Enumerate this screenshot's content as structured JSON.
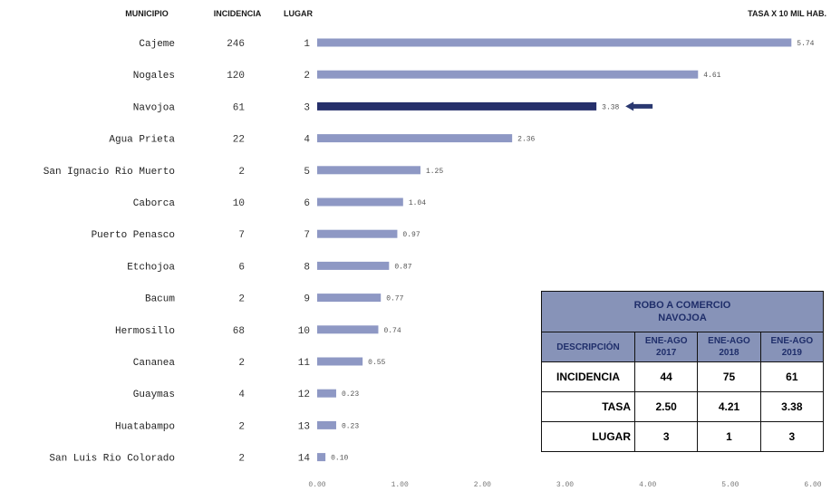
{
  "headers": {
    "municipio": "MUNICIPIO",
    "incidencia": "INCIDENCIA",
    "lugar": "LUGAR",
    "tasa": "TASA X 10 MIL HAB."
  },
  "colors": {
    "bar": "#8e98c4",
    "highlight_bar": "#26306b",
    "arrow": "#2a3870"
  },
  "chart_data": {
    "type": "bar",
    "orientation": "horizontal",
    "categories": [
      "Cajeme",
      "Nogales",
      "Navojoa",
      "Agua Prieta",
      "San Ignacio Rio Muerto",
      "Caborca",
      "Puerto Penasco",
      "Etchojoa",
      "Bacum",
      "Hermosillo",
      "Cananea",
      "Guaymas",
      "Huatabampo",
      "San Luis Rio Colorado"
    ],
    "incidencia": [
      "246",
      "120",
      "61",
      "22",
      "2",
      "10",
      "7",
      "6",
      "2",
      "68",
      "2",
      "4",
      "2",
      "2"
    ],
    "lugar": [
      "1",
      "2",
      "3",
      "4",
      "5",
      "6",
      "7",
      "8",
      "9",
      "10",
      "11",
      "12",
      "13",
      "14"
    ],
    "values": [
      5.74,
      4.61,
      3.38,
      2.36,
      1.25,
      1.04,
      0.97,
      0.87,
      0.77,
      0.74,
      0.55,
      0.23,
      0.23,
      0.1
    ],
    "value_labels": [
      "5.74",
      "4.61",
      "3.38",
      "2.36",
      "1.25",
      "1.04",
      "0.97",
      "0.87",
      "0.77",
      "0.74",
      "0.55",
      "0.23",
      "0.23",
      "0.10"
    ],
    "highlight": "Navojoa",
    "xlim": [
      0,
      6
    ],
    "x_ticks": [
      "0.00",
      "1.00",
      "2.00",
      "3.00",
      "4.00",
      "5.00",
      "6.00"
    ],
    "xlabel": "",
    "ylabel": "",
    "grid": false,
    "legend": "none"
  },
  "table": {
    "title_line1": "ROBO A COMERCIO",
    "title_line2": "NAVOJOA",
    "col_desc": "DESCRIPCIÓN",
    "cols": [
      {
        "top": "ENE-AGO",
        "year": "2017"
      },
      {
        "top": "ENE-AGO",
        "year": "2018"
      },
      {
        "top": "ENE-AGO",
        "year": "2019"
      }
    ],
    "rows": [
      {
        "label": "INCIDENCIA",
        "values": [
          "44",
          "75",
          "61"
        ]
      },
      {
        "label": "TASA",
        "values": [
          "2.50",
          "4.21",
          "3.38"
        ]
      },
      {
        "label": "LUGAR",
        "values": [
          "3",
          "1",
          "3"
        ]
      }
    ]
  }
}
